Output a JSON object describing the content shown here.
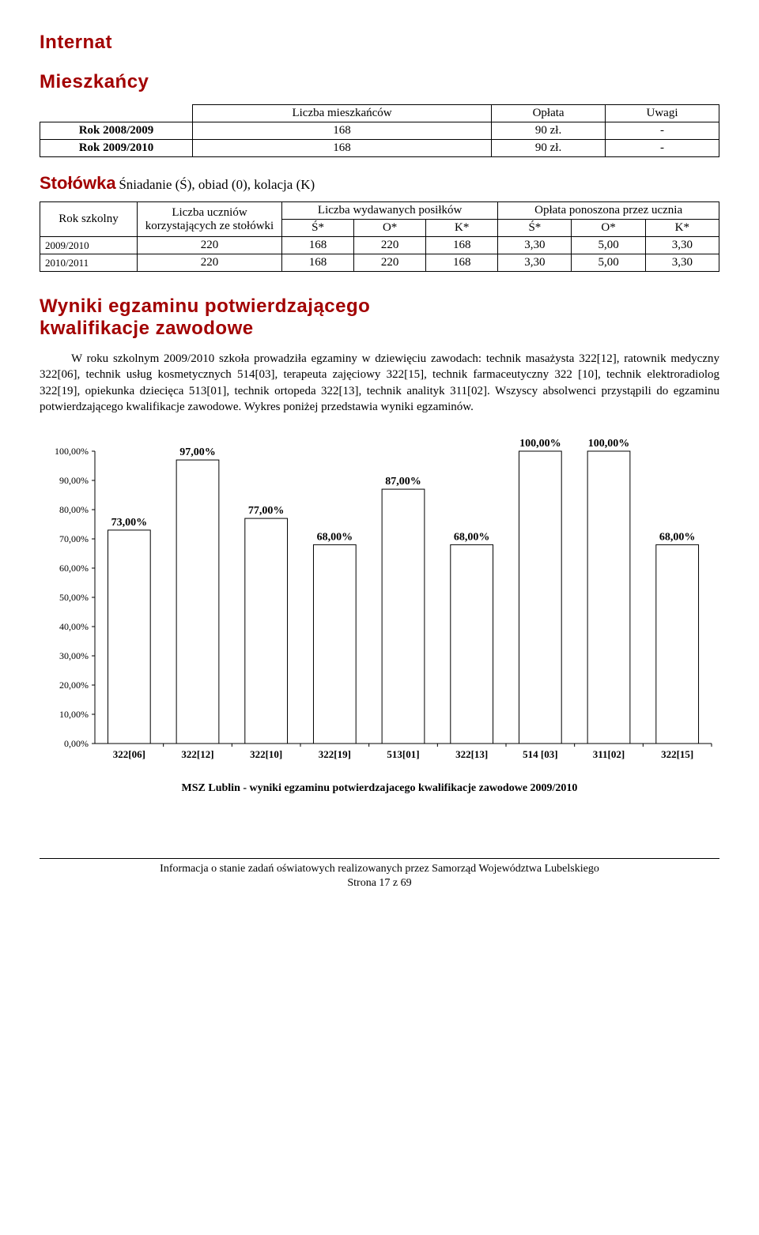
{
  "headings": {
    "internat": "Internat",
    "mieszkancy": "Mieszkańcy",
    "stolowka_prefix": "Stołówka",
    "stolowka_suffix": " Śniadanie (Ś), obiad (0), kolacja (K)",
    "wyniki_l1": "Wyniki egzaminu potwierdzającego",
    "wyniki_l2": "kwalifikacje zawodowe"
  },
  "table1": {
    "col_liczba": "Liczba mieszkańców",
    "col_oplata": "Opłata",
    "col_uwagi": "Uwagi",
    "row1_label": "Rok 2008/2009",
    "row1_liczba": "168",
    "row1_oplata": "90 zł.",
    "row1_uwagi": "-",
    "row2_label": "Rok 2009/2010",
    "row2_liczba": "168",
    "row2_oplata": "90 zł.",
    "row2_uwagi": "-"
  },
  "table2": {
    "h_rok": "Rok  szkolny",
    "h_liczba_uczniow": "Liczba uczniów korzystających ze stołówki",
    "h_liczba_posilkow": "Liczba wydawanych posiłków",
    "h_oplata": "Opłata ponoszona przez  ucznia",
    "sub_S": "Ś*",
    "sub_O": "O*",
    "sub_K": "K*",
    "r1_year": "2009/2010",
    "r1_c1": "220",
    "r1_c2": "168",
    "r1_c3": "220",
    "r1_c4": "168",
    "r1_c5": "3,30",
    "r1_c6": "5,00",
    "r1_c7": "3,30",
    "r2_year": "2010/2011",
    "r2_c1": "220",
    "r2_c2": "168",
    "r2_c3": "220",
    "r2_c4": "168",
    "r2_c5": "3,30",
    "r2_c6": "5,00",
    "r2_c7": "3,30"
  },
  "paragraph": "W roku szkolnym 2009/2010 szkoła prowadziła egzaminy w dziewięciu zawodach: technik masażysta 322[12], ratownik medyczny 322[06], technik usług kosmetycznych 514[03],  terapeuta zajęciowy 322[15], technik farmaceutyczny 322 [10], technik elektroradiolog 322[19], opiekunka dziecięca 513[01], technik ortopeda 322[13], technik analityk 311[02]. Wszyscy absolwenci przystąpili do egzaminu potwierdzającego kwalifikacje zawodowe. Wykres poniżej przedstawia wyniki egzaminów.",
  "chart": {
    "type": "bar",
    "background_color": "#ffffff",
    "bar_fill": "#ffffff",
    "bar_stroke": "#000000",
    "axis_color": "#000000",
    "grid_on": false,
    "ylim": [
      0,
      100
    ],
    "ytick_step": 10,
    "yticks": [
      "0,00%",
      "10,00%",
      "20,00%",
      "30,00%",
      "40,00%",
      "50,00%",
      "60,00%",
      "70,00%",
      "80,00%",
      "90,00%",
      "100,00%"
    ],
    "tick_fontsize": 12,
    "value_label_fontsize": 14,
    "value_label_weight": "bold",
    "bar_width_ratio": 0.62,
    "categories": [
      "322[06]",
      "322[12]",
      "322[10]",
      "322[19]",
      "513[01]",
      "322[13]",
      "514 [03]",
      "311[02]",
      "322[15]"
    ],
    "values": [
      73,
      97,
      77,
      68,
      87,
      68,
      100,
      100,
      68
    ],
    "value_labels": [
      "73,00%",
      "97,00%",
      "77,00%",
      "68,00%",
      "87,00%",
      "68,00%",
      "100,00%",
      "100,00%",
      "68,00%"
    ],
    "caption": "MSZ Lublin - wyniki egzaminu potwierdzajacego kwalifikacje zawodowe 2009/2010"
  },
  "footer": {
    "line1": "Informacja o stanie zadań oświatowych realizowanych przez Samorząd Województwa Lubelskiego",
    "line2": "Strona 17 z 69"
  }
}
